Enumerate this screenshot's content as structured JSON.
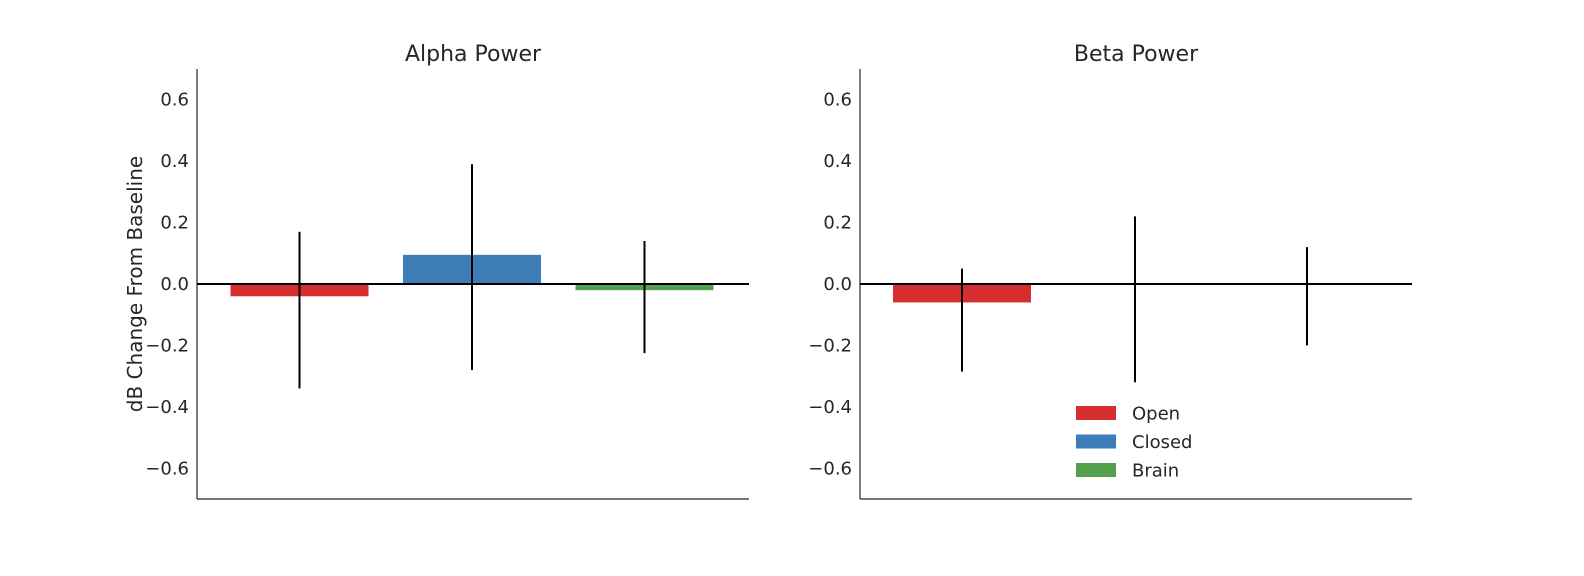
{
  "chart_data": [
    {
      "type": "bar",
      "title": "Alpha Power",
      "xlabel": "",
      "ylabel": "dB Change From Baseline",
      "ylim": [
        -0.7,
        0.7
      ],
      "yticks": [
        -0.6,
        -0.4,
        -0.2,
        0.0,
        0.2,
        0.4,
        0.6
      ],
      "ytick_labels": [
        "−0.6",
        "−0.4",
        "−0.2",
        "0.0",
        "0.2",
        "0.4",
        "0.6"
      ],
      "grid": false,
      "bars": [
        {
          "series": "Open",
          "value": -0.04,
          "err_low": -0.34,
          "err_high": 0.17
        },
        {
          "series": "Closed",
          "value": 0.095,
          "err_low": -0.28,
          "err_high": 0.39
        },
        {
          "series": "Brain",
          "value": -0.02,
          "err_low": -0.225,
          "err_high": 0.14
        }
      ]
    },
    {
      "type": "bar",
      "title": "Beta Power",
      "xlabel": "",
      "ylabel": "",
      "ylim": [
        -0.7,
        0.7
      ],
      "yticks": [
        -0.6,
        -0.4,
        -0.2,
        0.0,
        0.2,
        0.4,
        0.6
      ],
      "ytick_labels": [
        "−0.6",
        "−0.4",
        "−0.2",
        "0.0",
        "0.2",
        "0.4",
        "0.6"
      ],
      "grid": false,
      "bars": [
        {
          "series": "Open",
          "value": -0.06,
          "err_low": -0.285,
          "err_high": 0.05
        },
        {
          "series": "Closed",
          "value": 0.0,
          "err_low": -0.32,
          "err_high": 0.22
        },
        {
          "series": "Brain",
          "value": 0.0,
          "err_low": -0.2,
          "err_high": 0.12
        }
      ],
      "legend": {
        "placement": "lower-center",
        "entries": [
          {
            "label": "Open",
            "color": "#d62d2f"
          },
          {
            "label": "Closed",
            "color": "#3f7db8"
          },
          {
            "label": "Brain",
            "color": "#53a14f"
          }
        ]
      }
    }
  ],
  "colors": {
    "Open": "#d62d2f",
    "Closed": "#3f7db8",
    "Brain": "#53a14f"
  }
}
